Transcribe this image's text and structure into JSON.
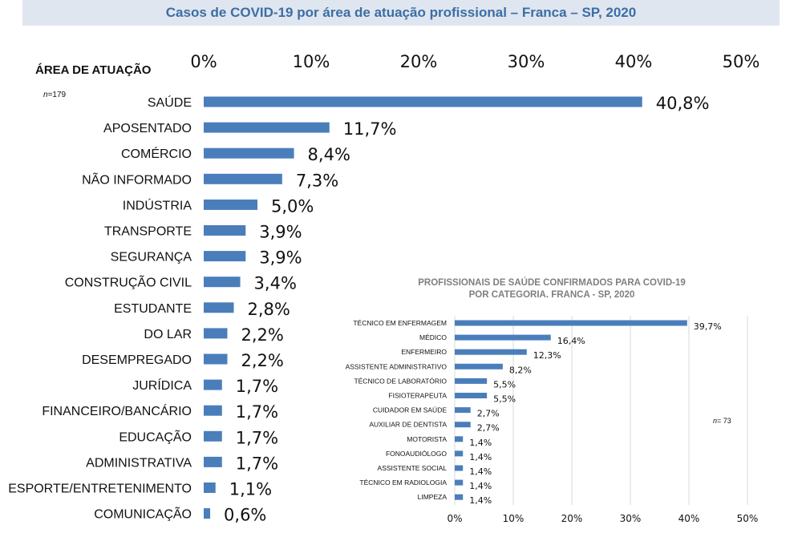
{
  "title": "Casos de COVID-19 por área de atuação profissional – Franca – SP, 2020",
  "chart_data": [
    {
      "type": "bar",
      "orientation": "horizontal",
      "y_axis_title": "ÁREA DE ATUAÇÃO",
      "n_label_prefix": "n",
      "n_label_value": "=179",
      "xlim": [
        0,
        50
      ],
      "x_ticks": [
        "0%",
        "10%",
        "20%",
        "30%",
        "40%",
        "50%"
      ],
      "categories": [
        "SAÚDE",
        "APOSENTADO",
        "COMÉRCIO",
        "NÃO INFORMADO",
        "INDÚSTRIA",
        "TRANSPORTE",
        "SEGURANÇA",
        "CONSTRUÇÃO CIVIL",
        "ESTUDANTE",
        "DO LAR",
        "DESEMPREGADO",
        "JURÍDICA",
        "FINANCEIRO/BANCÁRIO",
        "EDUCAÇÃO",
        "ADMINISTRATIVA",
        "ESPORTE/ENTRETENIMENTO",
        "COMUNICAÇÃO"
      ],
      "values": [
        40.8,
        11.7,
        8.4,
        7.3,
        5.0,
        3.9,
        3.9,
        3.4,
        2.8,
        2.2,
        2.2,
        1.7,
        1.7,
        1.7,
        1.7,
        1.1,
        0.6
      ],
      "value_labels": [
        "40,8%",
        "11,7%",
        "8,4%",
        "7,3%",
        "5,0%",
        "3,9%",
        "3,9%",
        "3,4%",
        "2,8%",
        "2,2%",
        "2,2%",
        "1,7%",
        "1,7%",
        "1,7%",
        "1,7%",
        "1,1%",
        "0,6%"
      ],
      "bar_color": "#4a7ebb"
    },
    {
      "type": "bar",
      "orientation": "horizontal",
      "title_line1": "PROFISSIONAIS DE SAÚDE CONFIRMADOS PARA COVID-19",
      "title_line2": "POR CATEGORIA. FRANCA - SP, 2020",
      "n_label_prefix": "n",
      "n_label_value": "= 73",
      "xlim": [
        0,
        50
      ],
      "x_ticks": [
        "0%",
        "10%",
        "20%",
        "30%",
        "40%",
        "50%"
      ],
      "categories": [
        "TÉCNICO EM ENFERMAGEM",
        "MÉDICO",
        "ENFERMEIRO",
        "ASSISTENTE ADMINISTRATIVO",
        "TÉCNICO DE LABORATÓRIO",
        "FISIOTERAPEUTA",
        "CUIDADOR EM SAÚDE",
        "AUXILIAR DE DENTISTA",
        "MOTORISTA",
        "FONOAUDIÓLOGO",
        "ASSISTENTE SOCIAL",
        "TÉCNICO EM RADIOLOGIA",
        "LIMPEZA"
      ],
      "values": [
        39.7,
        16.4,
        12.3,
        8.2,
        5.5,
        5.5,
        2.7,
        2.7,
        1.4,
        1.4,
        1.4,
        1.4,
        1.4
      ],
      "value_labels": [
        "39,7%",
        "16,4%",
        "12,3%",
        "8,2%",
        "5,5%",
        "5,5%",
        "2,7%",
        "2,7%",
        "1,4%",
        "1,4%",
        "1,4%",
        "1,4%",
        "1,4%"
      ],
      "bar_color": "#4a7ebb",
      "grid": true
    }
  ]
}
